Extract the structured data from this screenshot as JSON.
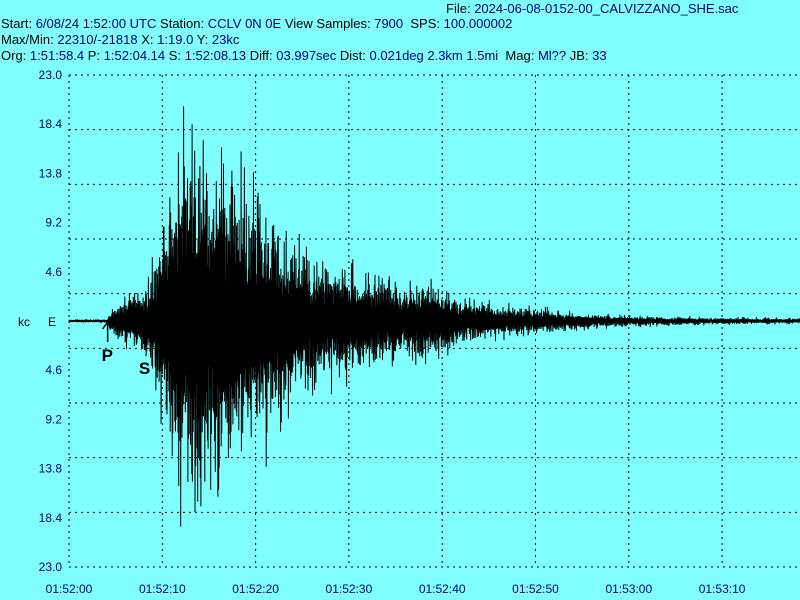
{
  "header": {
    "file_label": "File:",
    "file_value": "2024-06-08-0152-00_CALVIZZANO_SHE.sac",
    "start_label": "Start:",
    "start_value": "6/08/24  1:52:00 UTC",
    "station_label": "Station:",
    "station_value": "CCLV 0N 0E",
    "view_label": "View Samples:",
    "view_value": "7900",
    "sps_label": "SPS:",
    "sps_value": "100.000002",
    "maxmin_label": "Max/Min:",
    "maxmin_value": "22310/-21818",
    "x_label": "X:",
    "x_value": "1:19.0",
    "y_label": "Y:",
    "y_value": "23kc",
    "org_label": "Org:",
    "org_value": "1:51:58.4",
    "p_label": "P:",
    "p_value": "1:52:04.14",
    "s_label": "S:",
    "s_value": "1:52:08.13",
    "diff_label": "Diff:",
    "diff_value": "03.997sec",
    "dist_label": "Dist:",
    "dist_value": "0.021deg 2.3km 1.5mi",
    "mag_label": "Mag:",
    "mag_value": "Ml??",
    "jb_label": "JB:",
    "jb_value": "33"
  },
  "chart_data": {
    "type": "line",
    "y_unit_label": "kc",
    "component_label": "E",
    "yticks": [
      "23.0",
      "18.4",
      "13.8",
      "9.2",
      "4.6",
      "4.6",
      "9.2",
      "13.8",
      "18.4",
      "23.0"
    ],
    "ylim": [
      -23.0,
      23.0
    ],
    "xticks": [
      "01:52:00",
      "01:52:10",
      "01:52:20",
      "01:52:30",
      "01:52:40",
      "01:52:50",
      "01:53:00",
      "01:53:10"
    ],
    "x_range_seconds": [
      0,
      79
    ],
    "grid": true,
    "phase_picks": [
      {
        "label": "P",
        "t": 4.14
      },
      {
        "label": "S",
        "t": 8.13
      }
    ],
    "envelope": {
      "t": [
        0,
        4.1,
        4.5,
        5.5,
        8.0,
        9.0,
        10.0,
        11.0,
        12.0,
        13.0,
        14.0,
        15.0,
        16.0,
        17.0,
        18.0,
        19.0,
        20.0,
        22.0,
        24.0,
        26.0,
        28.0,
        30.0,
        32.0,
        34.0,
        36.0,
        38.0,
        40.0,
        42.0,
        45.0,
        50.0,
        55.0,
        60.0,
        70.0,
        79.0
      ],
      "amplitude_kc": [
        0.2,
        0.2,
        1.5,
        2.5,
        4.0,
        6.5,
        12.0,
        17.0,
        20.0,
        22.5,
        22.0,
        21.0,
        19.0,
        15.0,
        18.0,
        14.5,
        16.0,
        12.0,
        9.0,
        8.0,
        7.0,
        6.5,
        5.0,
        5.5,
        3.5,
        5.0,
        4.0,
        2.5,
        2.0,
        1.5,
        0.9,
        0.6,
        0.4,
        0.3
      ]
    },
    "color": "#000000",
    "text_color": "#000080",
    "background": "#80ffff"
  }
}
